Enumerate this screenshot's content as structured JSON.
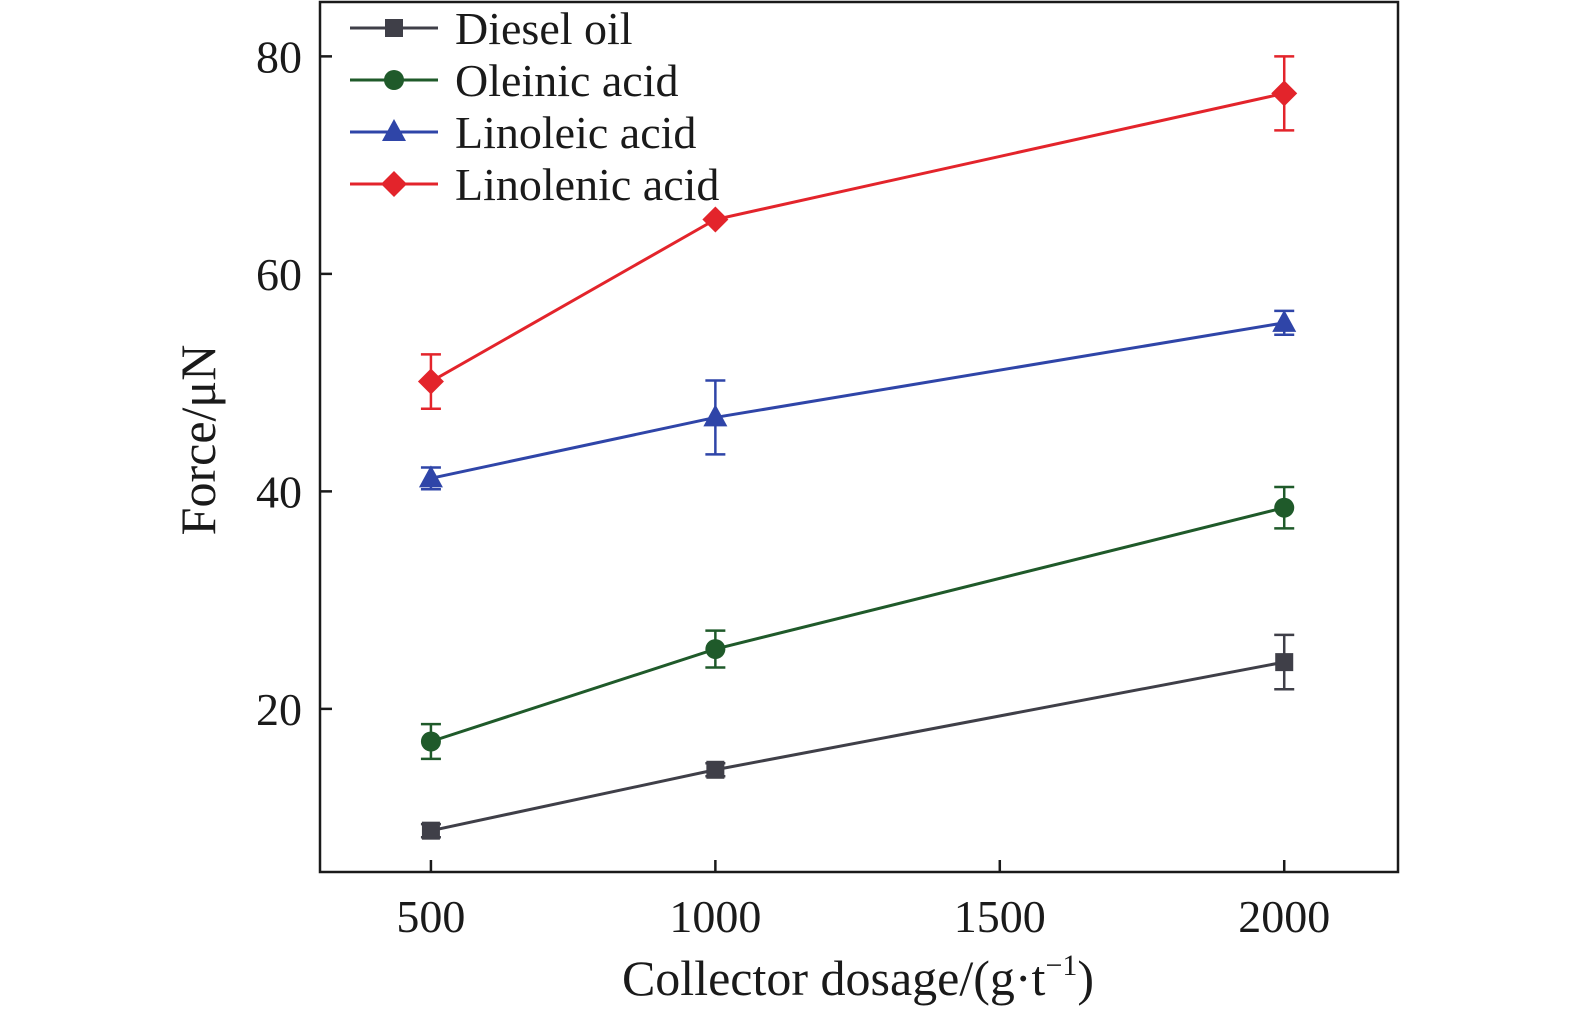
{
  "chart_data": {
    "type": "line",
    "xlabel": "Collector dosage/(g·t",
    "xlabel_sup": "−1",
    "xlabel_tail": ")",
    "ylabel": "Force/μN",
    "xlim": [
      305,
      2200
    ],
    "ylim": [
      5,
      85
    ],
    "xticks": [
      500,
      1000,
      1500,
      2000
    ],
    "yticks": [
      20,
      40,
      60,
      80
    ],
    "legend_position": "top-left",
    "grid": false,
    "x": [
      500,
      1000,
      2000
    ],
    "series": [
      {
        "name": "Diesel oil",
        "marker": "square",
        "color": "#3f3f48",
        "values": [
          8.8,
          14.4,
          24.3
        ],
        "errors": [
          0.6,
          0.6,
          2.5
        ]
      },
      {
        "name": "Oleinic acid",
        "marker": "circle",
        "color": "#1f5a2a",
        "values": [
          17.0,
          25.5,
          38.5
        ],
        "errors": [
          1.6,
          1.7,
          1.9
        ]
      },
      {
        "name": "Linoleic acid",
        "marker": "triangle",
        "color": "#2f45a8",
        "values": [
          41.2,
          46.8,
          55.5
        ],
        "errors": [
          1.0,
          3.4,
          1.1
        ]
      },
      {
        "name": "Linolenic acid",
        "marker": "diamond",
        "color": "#e3242b",
        "values": [
          50.1,
          65.0,
          76.6
        ],
        "errors": [
          2.5,
          0.0,
          3.4
        ]
      }
    ]
  }
}
